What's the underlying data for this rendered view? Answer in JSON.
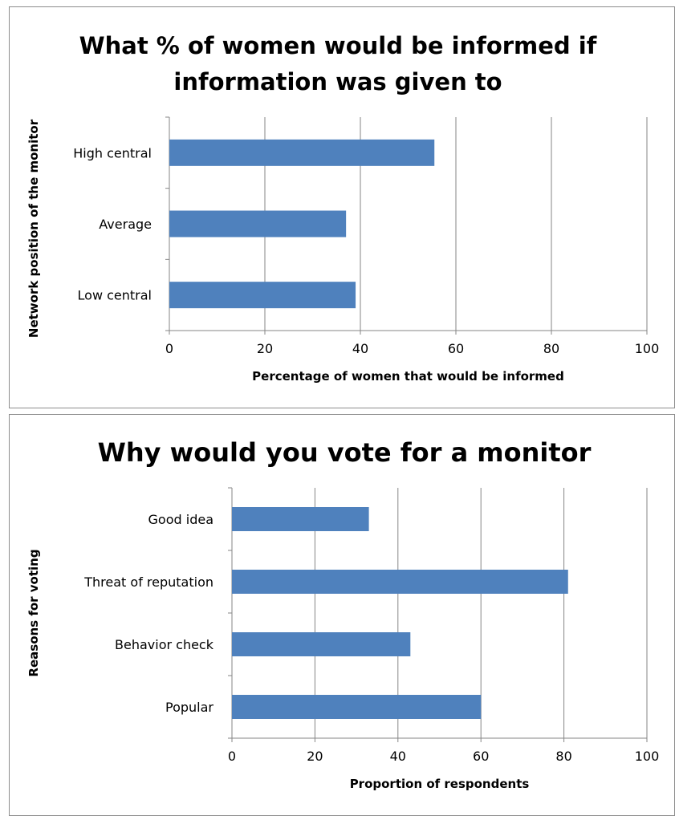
{
  "chart_data": [
    {
      "type": "bar",
      "orientation": "horizontal",
      "title": "What % of women would be informed if information was given to",
      "title_lines": [
        "What % of women would be informed if",
        "information was given to"
      ],
      "xlabel": "Percentage of women that would be informed",
      "ylabel": "Network position of the monitor",
      "categories": [
        "High central",
        "Average",
        "Low central"
      ],
      "values": [
        55.5,
        37,
        39
      ],
      "xlim": [
        0,
        100
      ],
      "xticks": [
        "0",
        "20",
        "40",
        "60",
        "80",
        "100"
      ],
      "grid": "vertical",
      "bar_color": "#4f81bd"
    },
    {
      "type": "bar",
      "orientation": "horizontal",
      "title": "Why would you vote for a monitor",
      "title_lines": [
        "Why would you vote for a monitor"
      ],
      "xlabel": "Proportion of respondents",
      "ylabel": "Reasons for voting",
      "categories": [
        "Good idea",
        "Threat of reputation",
        "Behavior check",
        "Popular"
      ],
      "values": [
        33,
        81,
        43,
        60
      ],
      "xlim": [
        0,
        100
      ],
      "xticks": [
        "0",
        "20",
        "40",
        "60",
        "80",
        "100"
      ],
      "grid": "vertical",
      "bar_color": "#4f81bd"
    }
  ]
}
